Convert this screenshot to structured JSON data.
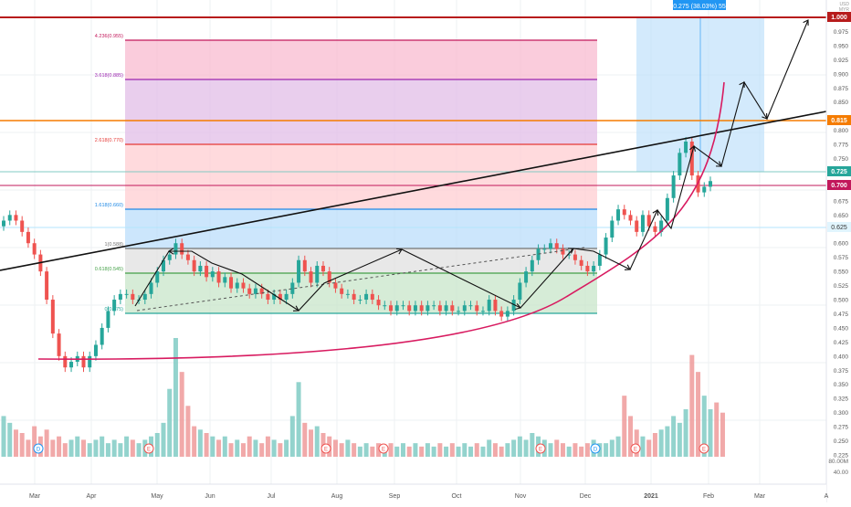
{
  "currency": {
    "top": "USD",
    "bottom": "MYR"
  },
  "colors": {
    "up": "#26a69a",
    "down": "#ef5350",
    "red_line": "#c2185b",
    "orange_line": "#f57c00",
    "teal_label": "#26a69a",
    "measure_box": "#90caf9"
  },
  "price_labels": {
    "p1000": "1.000",
    "p0815": "0.815",
    "p0725": "0.725",
    "p0700": "0.700",
    "p0625": "0.625"
  },
  "measure_label": "0.275 (38.03%) 55",
  "fib": [
    {
      "text": "4.236(0.955)",
      "value": 0.955,
      "color": "#c2185b"
    },
    {
      "text": "3.618(0.885)",
      "value": 0.885,
      "color": "#9c27b0"
    },
    {
      "text": "2.618(0.770)",
      "value": 0.77,
      "color": "#e53935"
    },
    {
      "text": "1.618(0.660)",
      "value": 0.66,
      "color": "#1e88e5"
    },
    {
      "text": "1(0.588)",
      "value": 0.588,
      "color": "#757575"
    },
    {
      "text": "0.618(0.545)",
      "value": 0.545,
      "color": "#43a047"
    },
    {
      "text": "0(0.475)",
      "value": 0.475,
      "color": "#26a69a"
    }
  ],
  "chart_data": {
    "type": "candlestick",
    "price_axis": {
      "min": 0.225,
      "max": 1.0,
      "step": 0.025,
      "ticks": [
        "1.000",
        "0.975",
        "0.950",
        "0.925",
        "0.900",
        "0.875",
        "0.850",
        "0.825",
        "0.800",
        "0.775",
        "0.750",
        "0.725",
        "0.700",
        "0.675",
        "0.650",
        "0.625",
        "0.600",
        "0.575",
        "0.550",
        "0.525",
        "0.500",
        "0.475",
        "0.450",
        "0.425",
        "0.400",
        "0.375",
        "0.350",
        "0.325",
        "0.300",
        "0.275",
        "0.250",
        "0.225"
      ]
    },
    "volume_axis_labels": [
      "80.00M",
      "40.00"
    ],
    "x_labels": [
      "Mar",
      "Apr",
      "May",
      "Jun",
      "Jul",
      "Aug",
      "Sep",
      "Oct",
      "Nov",
      "Dec",
      "2021",
      "Feb",
      "Mar",
      "A"
    ],
    "events": [
      "D",
      "E",
      "E",
      "E",
      "E",
      "D",
      "E",
      "E"
    ],
    "key_levels": [
      1.0,
      0.815,
      0.725,
      0.7,
      0.625
    ],
    "closes": [
      0.64,
      0.65,
      0.64,
      0.62,
      0.6,
      0.58,
      0.55,
      0.5,
      0.44,
      0.4,
      0.38,
      0.39,
      0.4,
      0.38,
      0.4,
      0.42,
      0.45,
      0.48,
      0.5,
      0.51,
      0.51,
      0.5,
      0.5,
      0.51,
      0.53,
      0.55,
      0.57,
      0.58,
      0.6,
      0.58,
      0.57,
      0.55,
      0.56,
      0.54,
      0.55,
      0.53,
      0.54,
      0.52,
      0.53,
      0.52,
      0.51,
      0.52,
      0.51,
      0.5,
      0.51,
      0.5,
      0.51,
      0.53,
      0.57,
      0.55,
      0.53,
      0.56,
      0.55,
      0.53,
      0.52,
      0.51,
      0.51,
      0.5,
      0.5,
      0.51,
      0.5,
      0.49,
      0.49,
      0.48,
      0.49,
      0.49,
      0.48,
      0.49,
      0.48,
      0.49,
      0.49,
      0.48,
      0.49,
      0.48,
      0.48,
      0.49,
      0.49,
      0.48,
      0.48,
      0.5,
      0.48,
      0.47,
      0.48,
      0.5,
      0.53,
      0.55,
      0.57,
      0.59,
      0.59,
      0.6,
      0.59,
      0.58,
      0.58,
      0.57,
      0.56,
      0.55,
      0.56,
      0.58,
      0.61,
      0.64,
      0.66,
      0.65,
      0.64,
      0.62,
      0.65,
      0.63,
      0.62,
      0.64,
      0.68,
      0.72,
      0.76,
      0.78,
      0.72,
      0.69,
      0.7,
      0.71
    ],
    "volumes": [
      12,
      10,
      8,
      7,
      5,
      9,
      6,
      8,
      5,
      6,
      4,
      5,
      6,
      5,
      4,
      5,
      6,
      4,
      5,
      4,
      6,
      5,
      4,
      5,
      6,
      7,
      10,
      20,
      35,
      25,
      15,
      9,
      8,
      7,
      6,
      5,
      6,
      4,
      5,
      4,
      6,
      5,
      4,
      6,
      5,
      4,
      5,
      12,
      22,
      10,
      8,
      9,
      7,
      6,
      5,
      4,
      5,
      4,
      3,
      4,
      3,
      4,
      3,
      4,
      3,
      4,
      3,
      4,
      3,
      4,
      3,
      4,
      3,
      4,
      3,
      4,
      3,
      4,
      3,
      5,
      4,
      3,
      4,
      5,
      6,
      5,
      7,
      6,
      5,
      4,
      5,
      4,
      3,
      4,
      3,
      4,
      5,
      4,
      4,
      5,
      6,
      18,
      12,
      8,
      6,
      5,
      7,
      8,
      9,
      12,
      10,
      14,
      30,
      25,
      18,
      14,
      16,
      13
    ]
  }
}
